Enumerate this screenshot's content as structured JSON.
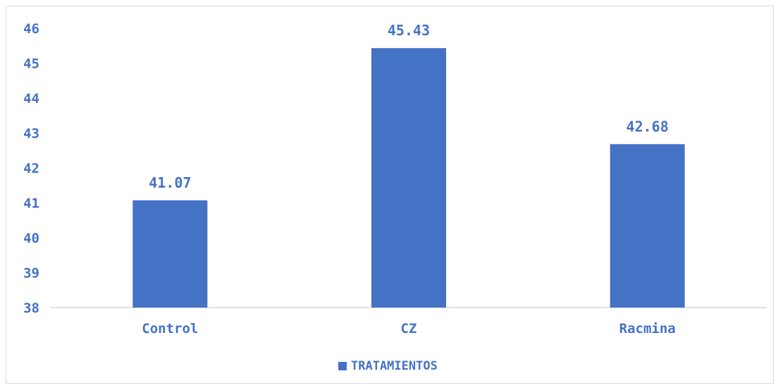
{
  "chart_data": {
    "type": "bar",
    "categories": [
      "Control",
      "CZ",
      "Racmina"
    ],
    "series": [
      {
        "name": "TRATAMIENTOS",
        "values": [
          41.07,
          45.43,
          42.68
        ]
      }
    ],
    "data_labels": [
      "41.07",
      "45.43",
      "42.68"
    ],
    "ylim": [
      38,
      46
    ],
    "y_ticks": [
      38,
      39,
      40,
      41,
      42,
      43,
      44,
      45,
      46
    ],
    "title": "",
    "xlabel": "",
    "ylabel": "",
    "grid": false,
    "legend_position": "bottom",
    "bar_color": "#4472c4"
  }
}
